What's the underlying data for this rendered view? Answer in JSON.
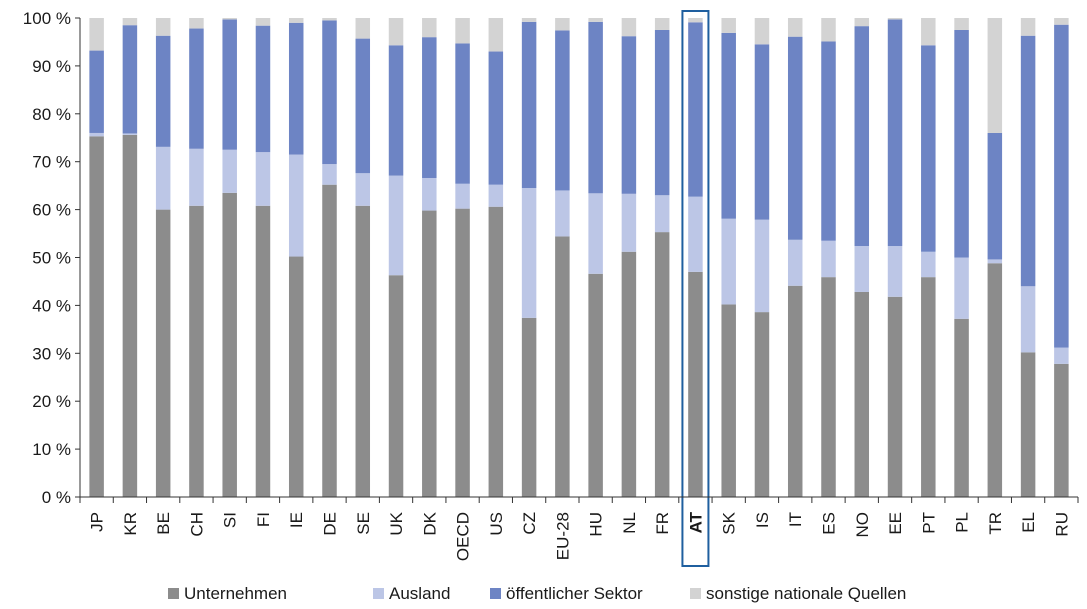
{
  "chart_data": {
    "type": "bar",
    "stacked": true,
    "orientation": "vertical",
    "ylim": [
      0,
      100
    ],
    "yticks": [
      "0 %",
      "10 %",
      "20 %",
      "30 %",
      "40 %",
      "50 %",
      "60 %",
      "70 %",
      "80 %",
      "90 %",
      "100 %"
    ],
    "yaxis_tick_values": [
      0,
      10,
      20,
      30,
      40,
      50,
      60,
      70,
      80,
      90,
      100
    ],
    "grid": false,
    "legend_position": "bottom",
    "highlight_category": "AT",
    "highlight_color": "#1f5f9f",
    "categories": [
      "JP",
      "KR",
      "BE",
      "CH",
      "SI",
      "FI",
      "IE",
      "DE",
      "SE",
      "UK",
      "DK",
      "OECD",
      "US",
      "CZ",
      "EU-28",
      "HU",
      "NL",
      "FR",
      "AT",
      "SK",
      "IS",
      "IT",
      "ES",
      "NO",
      "EE",
      "PT",
      "PL",
      "TR",
      "EL",
      "RU"
    ],
    "series": [
      {
        "name": "Unternehmen",
        "color": "#8c8c8c",
        "values": [
          75.3,
          75.6,
          60.0,
          60.8,
          63.5,
          60.8,
          50.2,
          65.2,
          60.8,
          46.3,
          59.8,
          60.2,
          60.6,
          37.4,
          54.4,
          46.6,
          51.2,
          55.3,
          47.0,
          40.2,
          38.6,
          44.1,
          45.9,
          42.8,
          41.8,
          45.9,
          37.2,
          48.8,
          30.2,
          27.8
        ]
      },
      {
        "name": "Ausland",
        "color": "#bcc6e6",
        "values": [
          0.7,
          0.3,
          13.1,
          11.9,
          9.0,
          11.2,
          21.3,
          4.3,
          6.8,
          20.8,
          6.8,
          5.2,
          4.6,
          27.1,
          9.6,
          16.8,
          12.1,
          7.7,
          15.7,
          17.9,
          19.3,
          9.6,
          7.6,
          9.6,
          10.6,
          5.3,
          12.8,
          0.8,
          13.8,
          3.4
        ]
      },
      {
        "name": "öffentlicher Sektor",
        "color": "#6d84c4",
        "values": [
          17.2,
          22.6,
          23.2,
          25.1,
          27.2,
          26.4,
          27.5,
          30.0,
          28.1,
          27.2,
          29.4,
          29.3,
          27.8,
          34.7,
          33.4,
          35.8,
          32.9,
          34.5,
          36.4,
          38.8,
          36.6,
          42.4,
          41.6,
          45.9,
          47.3,
          43.1,
          47.5,
          26.4,
          52.3,
          67.4
        ]
      },
      {
        "name": "sonstige nationale Quellen",
        "color": "#d3d3d3",
        "values": [
          6.8,
          1.5,
          3.7,
          2.2,
          0.3,
          1.6,
          1.0,
          0.5,
          4.3,
          5.7,
          4.0,
          5.3,
          7.0,
          0.8,
          2.6,
          0.8,
          3.8,
          2.5,
          0.9,
          3.1,
          5.5,
          3.9,
          4.9,
          1.7,
          0.3,
          5.7,
          2.5,
          24.0,
          3.7,
          1.4
        ]
      }
    ]
  }
}
